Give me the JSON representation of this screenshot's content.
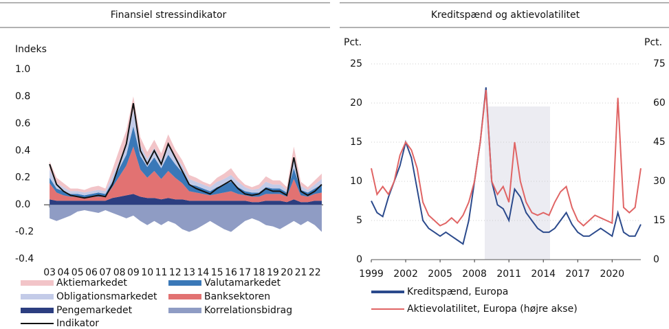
{
  "chart_data": [
    {
      "type": "area",
      "title": "Finansiel stressindikator",
      "y_label": "Indeks",
      "x": [
        3,
        3.5,
        4,
        4.5,
        5,
        5.5,
        6,
        6.5,
        7,
        7.5,
        8,
        8.5,
        9,
        9.5,
        10,
        10.5,
        11,
        11.5,
        12,
        12.5,
        13,
        13.5,
        14,
        14.5,
        15,
        15.5,
        16,
        16.5,
        17,
        17.5,
        18,
        18.5,
        19,
        19.5,
        20,
        20.5,
        21,
        21.5,
        22,
        22.5
      ],
      "xlim": [
        2.6,
        22.6
      ],
      "xticks": [
        {
          "value": 3,
          "label": "03"
        },
        {
          "value": 4,
          "label": "04"
        },
        {
          "value": 5,
          "label": "05"
        },
        {
          "value": 6,
          "label": "06"
        },
        {
          "value": 7,
          "label": "07"
        },
        {
          "value": 8,
          "label": "08"
        },
        {
          "value": 9,
          "label": "09"
        },
        10,
        11,
        12,
        13,
        14,
        15,
        16,
        17,
        18,
        19,
        20,
        21,
        22
      ],
      "ylim": [
        -0.4,
        1.0
      ],
      "yticks": [
        {
          "value": -0.4,
          "label": "-0.4"
        },
        {
          "value": -0.2,
          "label": "-0.2"
        },
        {
          "value": 0,
          "label": "0.0"
        },
        0.2,
        0.4,
        0.6,
        0.8,
        {
          "value": 1,
          "label": "1.0"
        }
      ],
      "series": [
        {
          "name": "Aktiemarkedet",
          "color": "#f2c4c8",
          "values": [
            0.06,
            0.04,
            0.03,
            0.02,
            0.02,
            0.02,
            0.03,
            0.03,
            0.02,
            0.05,
            0.08,
            0.1,
            0.1,
            0.06,
            0.05,
            0.06,
            0.05,
            0.07,
            0.05,
            0.04,
            0.03,
            0.03,
            0.02,
            0.02,
            0.03,
            0.04,
            0.05,
            0.03,
            0.02,
            0.02,
            0.03,
            0.04,
            0.03,
            0.03,
            0.02,
            0.08,
            0.03,
            0.02,
            0.03,
            0.04
          ]
        },
        {
          "name": "Obligationsmarkedet",
          "color": "#c3cbe8",
          "values": [
            0.06,
            0.04,
            0.03,
            0.02,
            0.02,
            0.02,
            0.02,
            0.02,
            0.02,
            0.04,
            0.06,
            0.08,
            0.12,
            0.08,
            0.06,
            0.07,
            0.06,
            0.08,
            0.06,
            0.05,
            0.04,
            0.03,
            0.03,
            0.03,
            0.04,
            0.04,
            0.05,
            0.04,
            0.03,
            0.02,
            0.03,
            0.04,
            0.03,
            0.03,
            0.02,
            0.08,
            0.03,
            0.02,
            0.03,
            0.04
          ]
        },
        {
          "name": "Pengemarkedet",
          "color": "#2c3e80",
          "values": [
            0.04,
            0.03,
            0.03,
            0.03,
            0.03,
            0.03,
            0.03,
            0.03,
            0.03,
            0.05,
            0.06,
            0.07,
            0.08,
            0.06,
            0.05,
            0.05,
            0.04,
            0.05,
            0.04,
            0.04,
            0.03,
            0.03,
            0.03,
            0.03,
            0.03,
            0.03,
            0.03,
            0.03,
            0.03,
            0.02,
            0.02,
            0.03,
            0.03,
            0.03,
            0.02,
            0.04,
            0.02,
            0.02,
            0.03,
            0.03
          ]
        },
        {
          "name": "Valutamarkedet",
          "color": "#3a78b8",
          "values": [
            0.04,
            0.03,
            0.03,
            0.02,
            0.02,
            0.02,
            0.02,
            0.03,
            0.02,
            0.04,
            0.06,
            0.08,
            0.15,
            0.1,
            0.08,
            0.1,
            0.08,
            0.12,
            0.1,
            0.08,
            0.05,
            0.05,
            0.04,
            0.03,
            0.05,
            0.06,
            0.07,
            0.05,
            0.03,
            0.03,
            0.03,
            0.05,
            0.04,
            0.04,
            0.03,
            0.08,
            0.04,
            0.03,
            0.04,
            0.06
          ]
        },
        {
          "name": "Banksektoren",
          "color": "#e27272",
          "values": [
            0.12,
            0.06,
            0.04,
            0.03,
            0.03,
            0.02,
            0.03,
            0.03,
            0.03,
            0.08,
            0.15,
            0.22,
            0.35,
            0.2,
            0.15,
            0.2,
            0.15,
            0.2,
            0.16,
            0.12,
            0.07,
            0.06,
            0.05,
            0.04,
            0.05,
            0.06,
            0.07,
            0.05,
            0.04,
            0.04,
            0.04,
            0.05,
            0.05,
            0.05,
            0.04,
            0.15,
            0.05,
            0.04,
            0.05,
            0.06
          ]
        },
        {
          "name": "Korrelationsbidrag",
          "color": "#8f9cc4",
          "values": [
            -0.1,
            -0.12,
            -0.1,
            -0.08,
            -0.05,
            -0.04,
            -0.05,
            -0.06,
            -0.04,
            -0.06,
            -0.08,
            -0.1,
            -0.08,
            -0.12,
            -0.15,
            -0.12,
            -0.15,
            -0.12,
            -0.14,
            -0.18,
            -0.2,
            -0.18,
            -0.15,
            -0.12,
            -0.15,
            -0.18,
            -0.2,
            -0.16,
            -0.12,
            -0.1,
            -0.12,
            -0.15,
            -0.16,
            -0.18,
            -0.15,
            -0.12,
            -0.15,
            -0.12,
            -0.15,
            -0.2
          ]
        },
        {
          "name": "Indikator",
          "color": "#111111",
          "values": [
            0.3,
            0.15,
            0.1,
            0.07,
            0.06,
            0.05,
            0.06,
            0.07,
            0.06,
            0.15,
            0.3,
            0.45,
            0.75,
            0.4,
            0.3,
            0.4,
            0.3,
            0.45,
            0.35,
            0.25,
            0.15,
            0.12,
            0.1,
            0.08,
            0.12,
            0.15,
            0.18,
            0.12,
            0.08,
            0.07,
            0.08,
            0.12,
            0.1,
            0.1,
            0.07,
            0.35,
            0.1,
            0.07,
            0.1,
            0.15
          ]
        }
      ]
    },
    {
      "type": "line",
      "title": "Kreditspænd og aktievolatilitet",
      "y_label": "Pct.",
      "y2_label": "Pct.",
      "x": [
        1999,
        1999.5,
        2000,
        2000.5,
        2001,
        2001.5,
        2002,
        2002.5,
        2003,
        2003.5,
        2004,
        2004.5,
        2005,
        2005.5,
        2006,
        2006.5,
        2007,
        2007.5,
        2008,
        2008.5,
        2009,
        2009.5,
        2010,
        2010.5,
        2011,
        2011.5,
        2012,
        2012.5,
        2013,
        2013.5,
        2014,
        2014.5,
        2015,
        2015.5,
        2016,
        2016.5,
        2017,
        2017.5,
        2018,
        2018.5,
        2019,
        2019.5,
        2020,
        2020.5,
        2021,
        2021.5,
        2022,
        2022.5
      ],
      "xlim": [
        1999,
        2022.5
      ],
      "xticks": [
        1999,
        2002,
        2005,
        2008,
        2011,
        2014,
        2017,
        2020
      ],
      "ylim": [
        0,
        25
      ],
      "yticks": [
        0,
        5,
        10,
        15,
        20,
        25
      ],
      "y2lim": [
        0,
        75
      ],
      "y2ticks": [
        0,
        15,
        30,
        45,
        60,
        75
      ],
      "grid": true,
      "series": [
        {
          "name": "Kreditspænd, Europa",
          "color": "#2b4a8c",
          "values": [
            7.5,
            6,
            5.5,
            8,
            10,
            12,
            15,
            13,
            9,
            5,
            4,
            3.5,
            3,
            3.5,
            3,
            2.5,
            2,
            5,
            10,
            15,
            22,
            10,
            7,
            6.5,
            5,
            9,
            8,
            6,
            5,
            4,
            3.5,
            3.5,
            4,
            5,
            6,
            4.5,
            3.5,
            3,
            3,
            3.5,
            4,
            3.5,
            3,
            6,
            3.5,
            3,
            3,
            4.5
          ]
        },
        {
          "name": "Aktievolatilitet, Europa (højre akse)",
          "color": "#e06464",
          "axis": "y2",
          "values": [
            35,
            25,
            28,
            25,
            30,
            40,
            45,
            42,
            35,
            22,
            17,
            15,
            13,
            14,
            16,
            14,
            17,
            22,
            30,
            45,
            65,
            30,
            25,
            28,
            22,
            45,
            30,
            22,
            18,
            17,
            18,
            17,
            22,
            26,
            28,
            20,
            15,
            13,
            15,
            17,
            16,
            15,
            14,
            62,
            20,
            18,
            20,
            35
          ]
        }
      ]
    }
  ]
}
